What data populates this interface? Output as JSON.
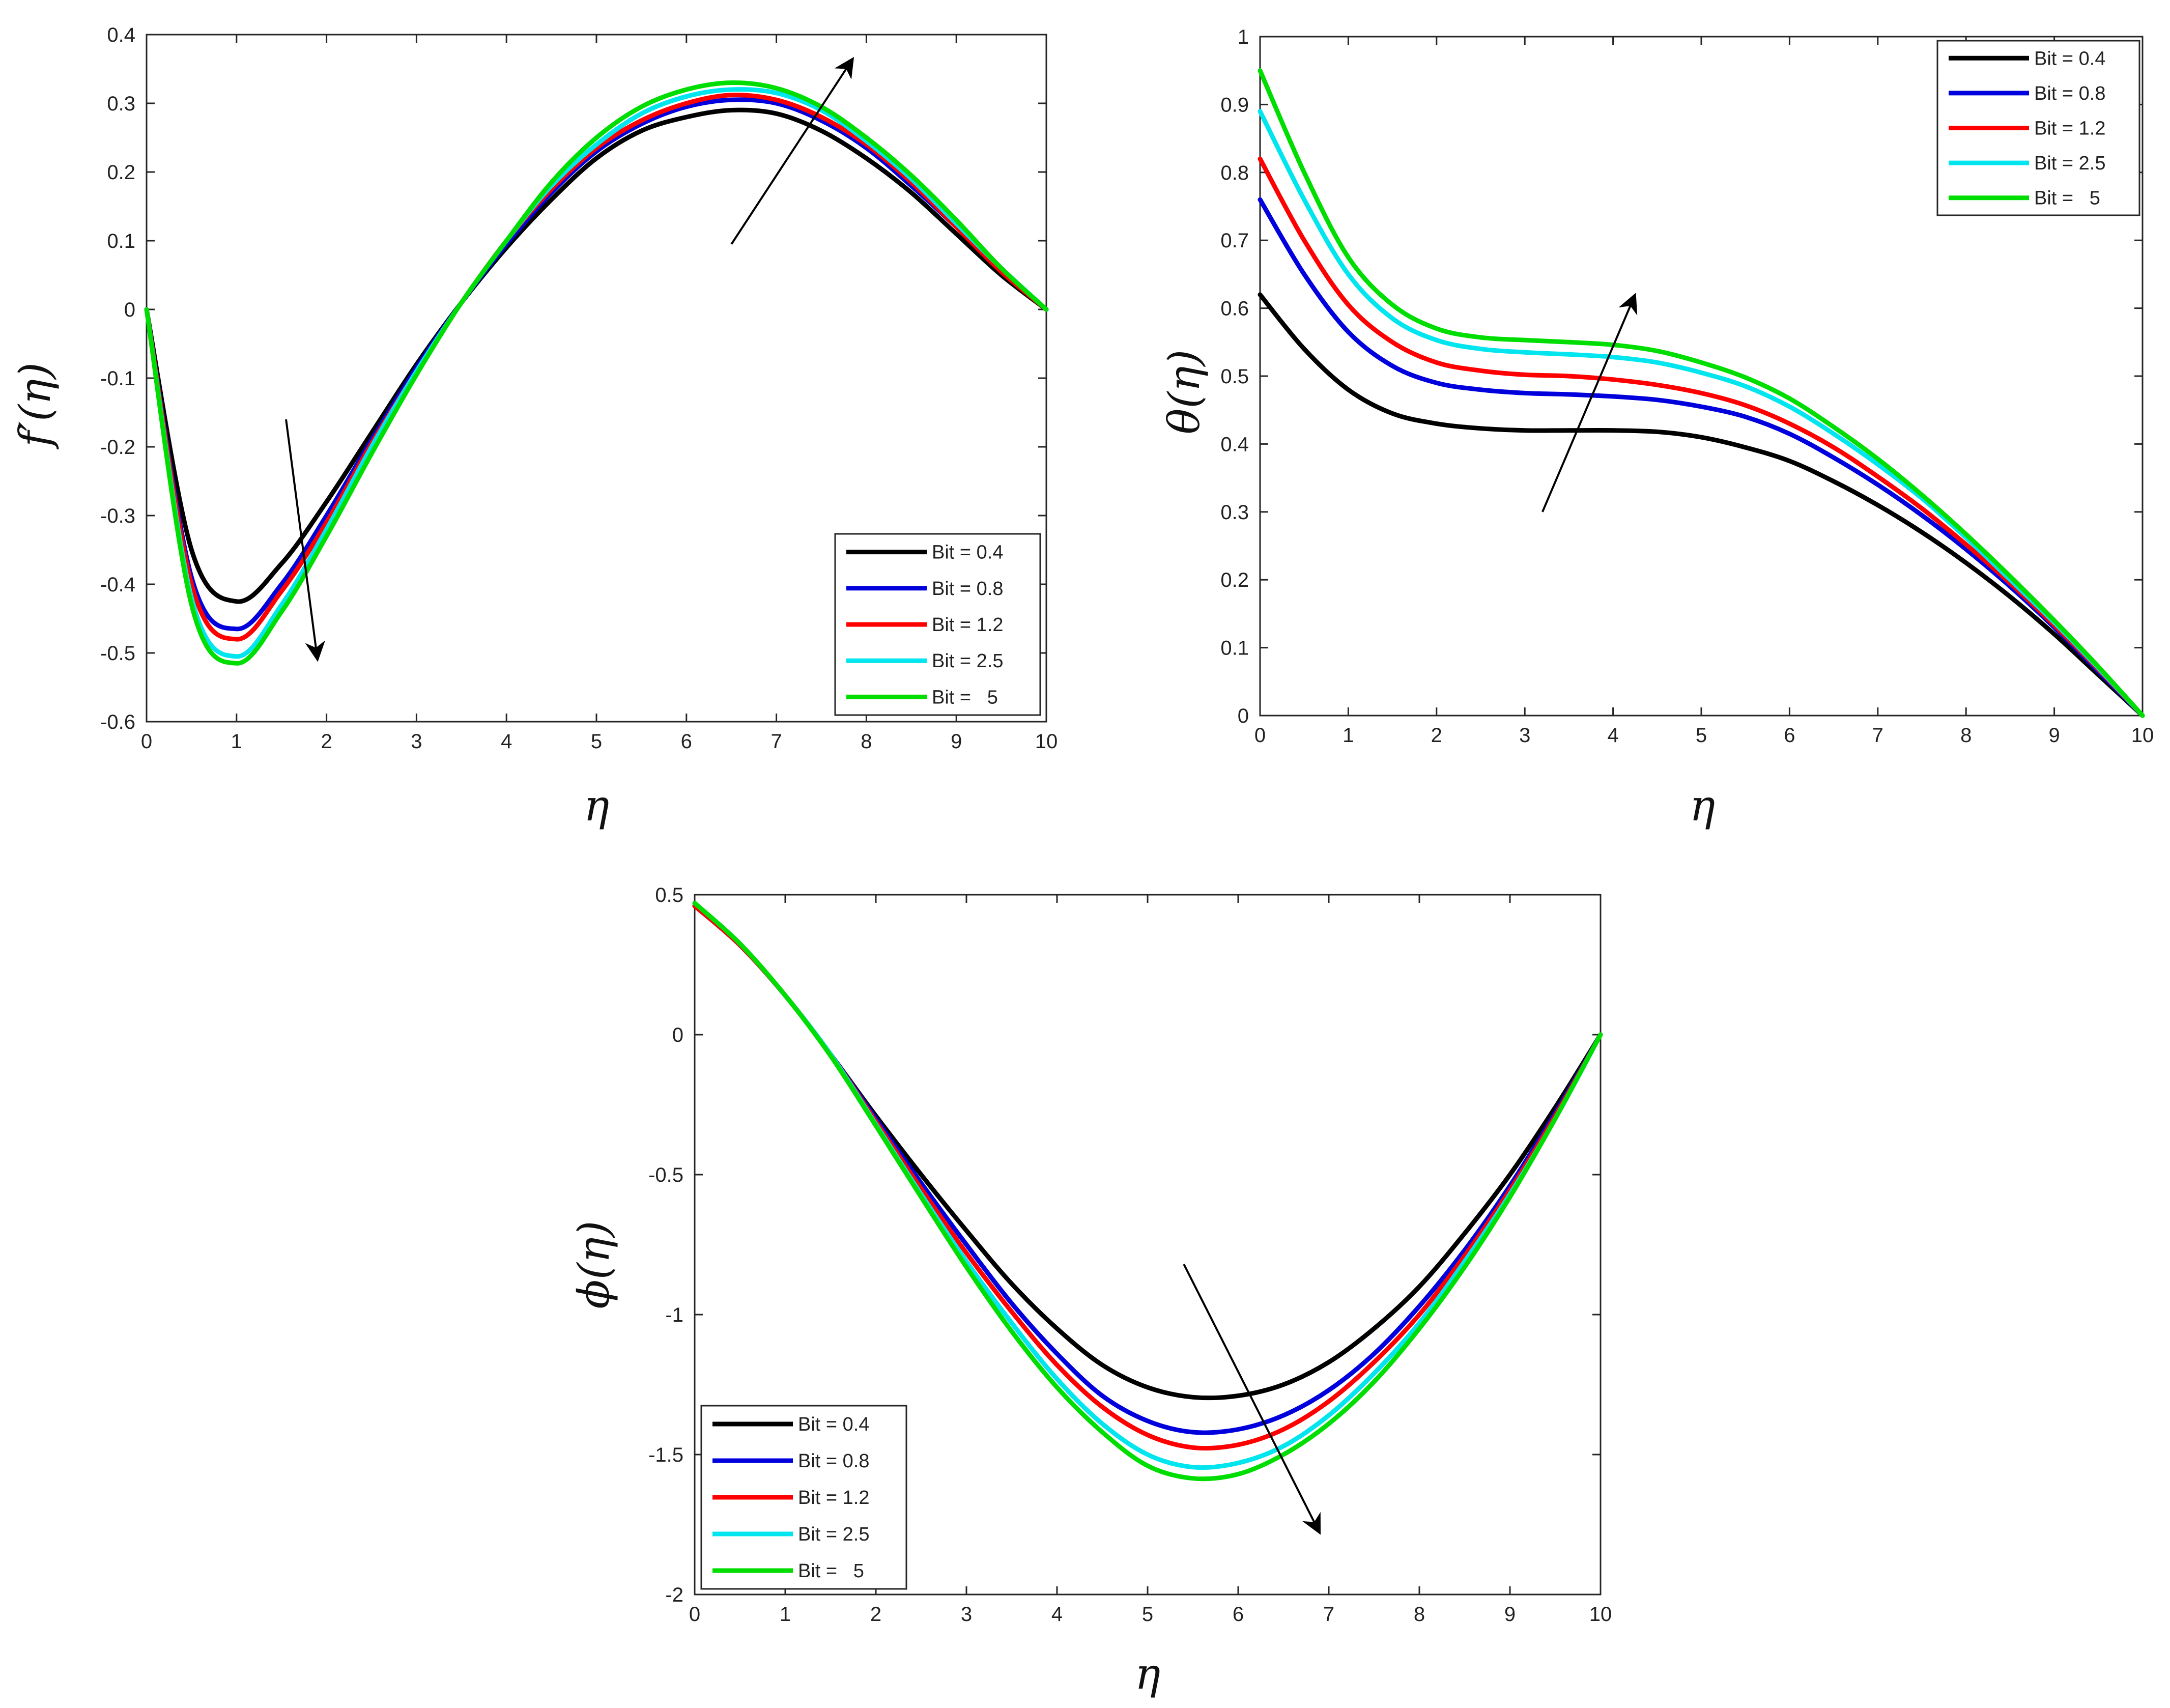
{
  "chart_data": [
    {
      "type": "line",
      "panel": "top-left",
      "title": "",
      "xlabel": "η",
      "ylabel": "f′(η)",
      "xlim": [
        0,
        10
      ],
      "ylim": [
        -0.6,
        0.4
      ],
      "xticks": [
        0,
        1,
        2,
        3,
        4,
        5,
        6,
        7,
        8,
        9,
        10
      ],
      "yticks": [
        -0.6,
        -0.5,
        -0.4,
        -0.3,
        -0.2,
        -0.1,
        0,
        0.1,
        0.2,
        0.3,
        0.4
      ],
      "ytick_labels": [
        "-0.6",
        "-0.5",
        "-0.4",
        "-0.3",
        "-0.2",
        "-0.1",
        "0",
        "0.1",
        "0.2",
        "0.3",
        "0.4"
      ],
      "legend_position": "bottom-right",
      "x": [
        0,
        0.5,
        1,
        1.5,
        2,
        2.5,
        3,
        3.5,
        4,
        4.5,
        5,
        5.5,
        6,
        6.5,
        7,
        7.5,
        8,
        8.5,
        9,
        9.5,
        10
      ],
      "series": [
        {
          "name": "Bit = 0.4",
          "color": "#000000",
          "values": [
            0,
            -0.35,
            -0.425,
            -0.37,
            -0.28,
            -0.18,
            -0.08,
            0.01,
            0.09,
            0.16,
            0.22,
            0.26,
            0.28,
            0.29,
            0.285,
            0.26,
            0.22,
            0.17,
            0.11,
            0.05,
            0
          ]
        },
        {
          "name": "Bit = 0.8",
          "color": "#0000dd",
          "values": [
            0,
            -0.39,
            -0.465,
            -0.4,
            -0.3,
            -0.19,
            -0.085,
            0.01,
            0.095,
            0.17,
            0.23,
            0.27,
            0.295,
            0.305,
            0.3,
            0.275,
            0.235,
            0.18,
            0.12,
            0.055,
            0
          ]
        },
        {
          "name": "Bit = 1.2",
          "color": "#ff0000",
          "values": [
            0,
            -0.4,
            -0.48,
            -0.41,
            -0.31,
            -0.195,
            -0.09,
            0.01,
            0.1,
            0.175,
            0.235,
            0.275,
            0.3,
            0.312,
            0.305,
            0.28,
            0.24,
            0.185,
            0.12,
            0.055,
            0
          ]
        },
        {
          "name": "Bit = 2.5",
          "color": "#00e5ee",
          "values": [
            0,
            -0.42,
            -0.505,
            -0.43,
            -0.32,
            -0.2,
            -0.09,
            0.01,
            0.1,
            0.18,
            0.24,
            0.285,
            0.31,
            0.32,
            0.315,
            0.29,
            0.245,
            0.19,
            0.125,
            0.06,
            0
          ]
        },
        {
          "name": "Bit =   5",
          "color": "#00dd00",
          "values": [
            0,
            -0.43,
            -0.515,
            -0.44,
            -0.33,
            -0.21,
            -0.095,
            0.01,
            0.1,
            0.185,
            0.25,
            0.295,
            0.32,
            0.33,
            0.322,
            0.295,
            0.25,
            0.195,
            0.13,
            0.06,
            0
          ]
        }
      ],
      "annotations": [
        {
          "type": "arrow",
          "from": [
            1.55,
            -0.16
          ],
          "to": [
            1.9,
            -0.51
          ]
        },
        {
          "type": "arrow",
          "from": [
            6.5,
            0.095
          ],
          "to": [
            7.85,
            0.365
          ]
        }
      ]
    },
    {
      "type": "line",
      "panel": "top-right",
      "title": "",
      "xlabel": "η",
      "ylabel": "θ(η)",
      "xlim": [
        0,
        10
      ],
      "ylim": [
        0,
        1
      ],
      "xticks": [
        0,
        1,
        2,
        3,
        4,
        5,
        6,
        7,
        8,
        9,
        10
      ],
      "yticks": [
        0,
        0.1,
        0.2,
        0.3,
        0.4,
        0.5,
        0.6,
        0.7,
        0.8,
        0.9,
        1
      ],
      "ytick_labels": [
        "0",
        "0.1",
        "0.2",
        "0.3",
        "0.4",
        "0.5",
        "0.6",
        "0.7",
        "0.8",
        "0.9",
        "1"
      ],
      "legend_position": "top-right",
      "x": [
        0,
        0.5,
        1,
        1.5,
        2,
        2.5,
        3,
        3.5,
        4,
        4.5,
        5,
        5.5,
        6,
        6.5,
        7,
        7.5,
        8,
        8.5,
        9,
        9.5,
        10
      ],
      "series": [
        {
          "name": "Bit = 0.4",
          "color": "#000000",
          "values": [
            0.62,
            0.54,
            0.48,
            0.445,
            0.43,
            0.423,
            0.42,
            0.42,
            0.42,
            0.418,
            0.41,
            0.395,
            0.375,
            0.345,
            0.31,
            0.27,
            0.225,
            0.175,
            0.12,
            0.06,
            0
          ]
        },
        {
          "name": "Bit = 0.8",
          "color": "#0000dd",
          "values": [
            0.76,
            0.65,
            0.565,
            0.515,
            0.49,
            0.48,
            0.475,
            0.473,
            0.47,
            0.465,
            0.455,
            0.44,
            0.415,
            0.38,
            0.34,
            0.295,
            0.245,
            0.19,
            0.13,
            0.065,
            0
          ]
        },
        {
          "name": "Bit = 1.2",
          "color": "#ff0000",
          "values": [
            0.82,
            0.7,
            0.605,
            0.55,
            0.52,
            0.508,
            0.502,
            0.5,
            0.495,
            0.487,
            0.475,
            0.457,
            0.43,
            0.395,
            0.352,
            0.305,
            0.252,
            0.195,
            0.133,
            0.068,
            0
          ]
        },
        {
          "name": "Bit = 2.5",
          "color": "#00e5ee",
          "values": [
            0.89,
            0.76,
            0.65,
            0.585,
            0.553,
            0.54,
            0.535,
            0.532,
            0.528,
            0.52,
            0.505,
            0.485,
            0.455,
            0.415,
            0.37,
            0.32,
            0.262,
            0.2,
            0.137,
            0.07,
            0
          ]
        },
        {
          "name": "Bit =   5",
          "color": "#00dd00",
          "values": [
            0.95,
            0.8,
            0.675,
            0.605,
            0.57,
            0.557,
            0.553,
            0.55,
            0.546,
            0.537,
            0.52,
            0.498,
            0.467,
            0.425,
            0.378,
            0.325,
            0.267,
            0.205,
            0.14,
            0.072,
            0
          ]
        }
      ],
      "annotations": [
        {
          "type": "arrow",
          "from": [
            3.2,
            0.3
          ],
          "to": [
            4.25,
            0.62
          ]
        }
      ]
    },
    {
      "type": "line",
      "panel": "bottom-center",
      "title": "",
      "xlabel": "η",
      "ylabel": "ϕ(η)",
      "xlim": [
        0,
        10
      ],
      "ylim": [
        -2,
        0.5
      ],
      "xticks": [
        0,
        1,
        2,
        3,
        4,
        5,
        6,
        7,
        8,
        9,
        10
      ],
      "yticks": [
        -2,
        -1.5,
        -1,
        -0.5,
        0,
        0.5
      ],
      "ytick_labels": [
        "-2",
        "-1.5",
        "-1",
        "-0.5",
        "0",
        "0.5"
      ],
      "legend_position": "bottom-left",
      "x": [
        0,
        0.5,
        1,
        1.5,
        2,
        2.5,
        3,
        3.5,
        4,
        4.5,
        5,
        5.5,
        6,
        6.5,
        7,
        7.5,
        8,
        8.5,
        9,
        9.5,
        10
      ],
      "series": [
        {
          "name": "Bit = 0.4",
          "color": "#000000",
          "values": [
            0.46,
            0.32,
            0.14,
            -0.07,
            -0.29,
            -0.5,
            -0.7,
            -0.89,
            -1.05,
            -1.18,
            -1.26,
            -1.295,
            -1.29,
            -1.25,
            -1.17,
            -1.05,
            -0.9,
            -0.71,
            -0.5,
            -0.26,
            0
          ]
        },
        {
          "name": "Bit = 0.8",
          "color": "#0000dd",
          "values": [
            0.46,
            0.32,
            0.14,
            -0.07,
            -0.3,
            -0.53,
            -0.75,
            -0.96,
            -1.14,
            -1.29,
            -1.38,
            -1.42,
            -1.41,
            -1.36,
            -1.27,
            -1.14,
            -0.97,
            -0.77,
            -0.54,
            -0.28,
            0
          ]
        },
        {
          "name": "Bit = 1.2",
          "color": "#ff0000",
          "values": [
            0.46,
            0.32,
            0.14,
            -0.07,
            -0.31,
            -0.55,
            -0.78,
            -0.99,
            -1.18,
            -1.33,
            -1.43,
            -1.475,
            -1.465,
            -1.41,
            -1.31,
            -1.17,
            -1.0,
            -0.79,
            -0.555,
            -0.29,
            0
          ]
        },
        {
          "name": "Bit = 2.5",
          "color": "#00e5ee",
          "values": [
            0.47,
            0.325,
            0.14,
            -0.07,
            -0.32,
            -0.57,
            -0.81,
            -1.03,
            -1.23,
            -1.39,
            -1.5,
            -1.545,
            -1.53,
            -1.47,
            -1.36,
            -1.21,
            -1.03,
            -0.81,
            -0.57,
            -0.3,
            0
          ]
        },
        {
          "name": "Bit =   5",
          "color": "#00dd00",
          "values": [
            0.47,
            0.325,
            0.14,
            -0.075,
            -0.325,
            -0.58,
            -0.83,
            -1.06,
            -1.26,
            -1.42,
            -1.54,
            -1.585,
            -1.57,
            -1.5,
            -1.39,
            -1.24,
            -1.05,
            -0.83,
            -0.58,
            -0.3,
            0
          ]
        }
      ],
      "annotations": [
        {
          "type": "arrow",
          "from": [
            5.4,
            -0.82
          ],
          "to": [
            6.9,
            -1.78
          ]
        }
      ]
    }
  ]
}
